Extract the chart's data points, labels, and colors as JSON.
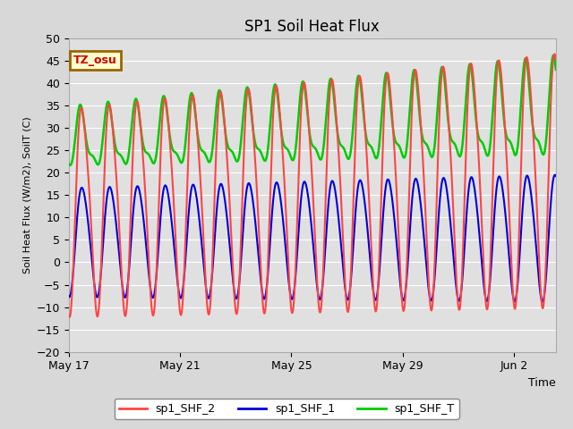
{
  "title": "SP1 Soil Heat Flux",
  "ylabel": "Soil Heat Flux (W/m2), SoilT (C)",
  "xlabel": "Time",
  "ylim": [
    -20,
    50
  ],
  "yticks": [
    -20,
    -15,
    -10,
    -5,
    0,
    5,
    10,
    15,
    20,
    25,
    30,
    35,
    40,
    45,
    50
  ],
  "xtick_labels": [
    "May 17",
    "May 21",
    "May 25",
    "May 29",
    "Jun 2"
  ],
  "xtick_positions": [
    0,
    4,
    8,
    12,
    16
  ],
  "xlim": [
    0,
    17.5
  ],
  "bg_color": "#d8d8d8",
  "plot_bg_color": "#e0e0e0",
  "grid_color": "#ffffff",
  "series": [
    {
      "name": "sp1_SHF_2",
      "color": "#ff4444",
      "lw": 1.5
    },
    {
      "name": "sp1_SHF_1",
      "color": "#0000dd",
      "lw": 1.5
    },
    {
      "name": "sp1_SHF_T",
      "color": "#00cc00",
      "lw": 1.8
    }
  ],
  "tz_label": "TZ_osu",
  "tz_text_color": "#cc0000",
  "tz_bg_color": "#ffffcc",
  "tz_border_color": "#996600",
  "t_end": 17.5,
  "n_points": 3000
}
